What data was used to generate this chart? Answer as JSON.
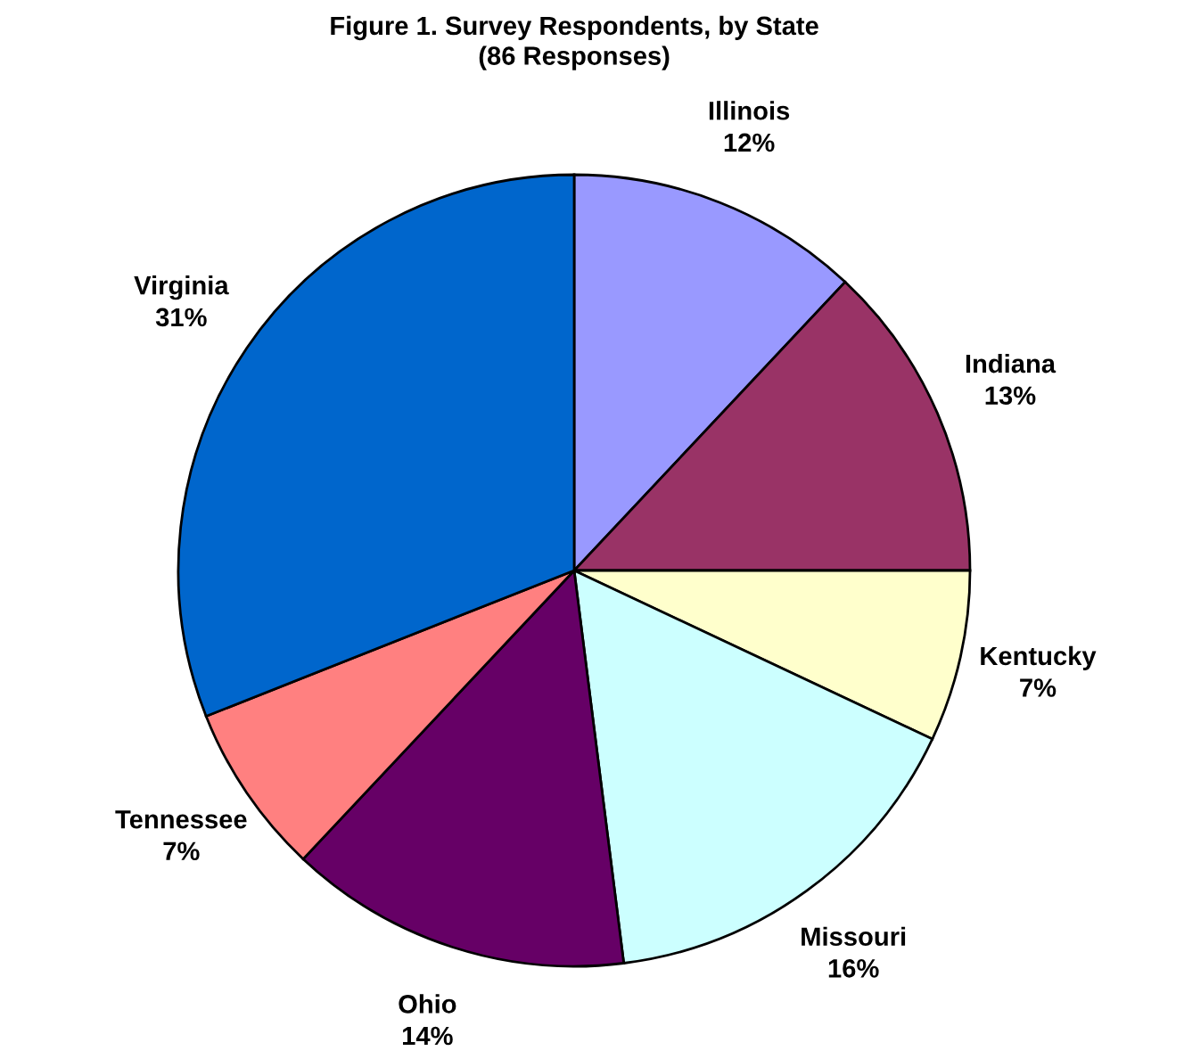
{
  "chart_data": {
    "type": "pie",
    "title": "Figure 1. Survey Respondents, by State\n(86 Responses)",
    "categories": [
      "Illinois",
      "Indiana",
      "Kentucky",
      "Missouri",
      "Ohio",
      "Tennessee",
      "Virginia"
    ],
    "values": [
      12,
      13,
      7,
      16,
      14,
      7,
      31
    ],
    "colors": [
      "#9999ff",
      "#993366",
      "#ffffcc",
      "#ccffff",
      "#660066",
      "#ff8080",
      "#0066cc"
    ],
    "value_labels": [
      "12%",
      "13%",
      "7%",
      "16%",
      "14%",
      "7%",
      "31%"
    ]
  }
}
